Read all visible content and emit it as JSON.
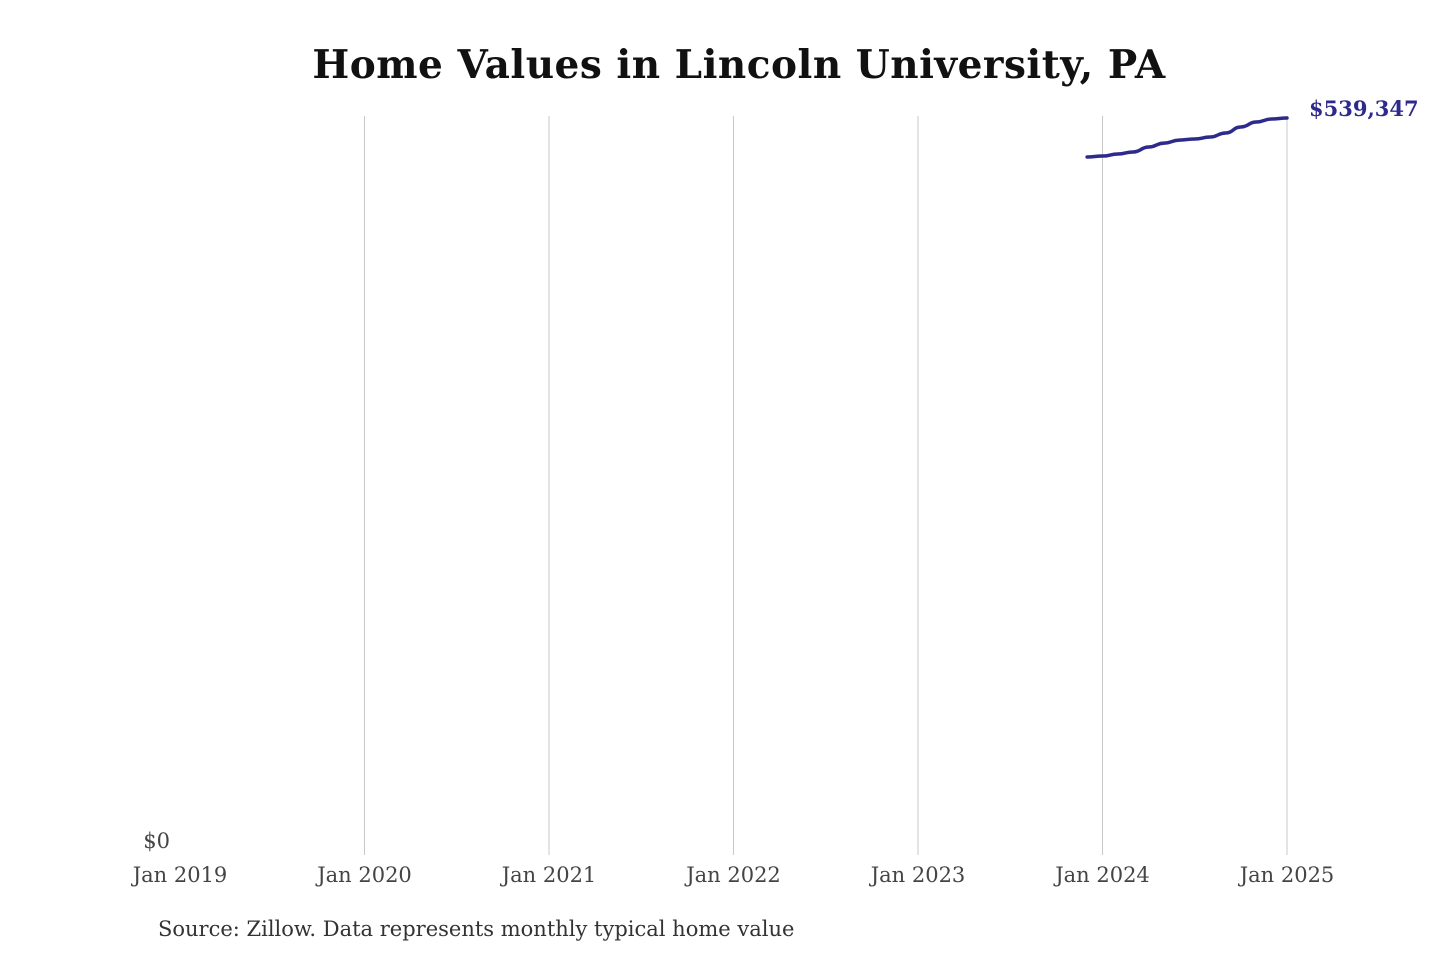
{
  "chart_data": {
    "type": "line",
    "title": "Home Values in Lincoln University, PA",
    "xlabel": "",
    "ylabel": "",
    "x_ticks": [
      "Jan 2019",
      "Jan 2020",
      "Jan 2021",
      "Jan 2022",
      "Jan 2023",
      "Jan 2024",
      "Jan 2025"
    ],
    "y_ticks": [
      "$0"
    ],
    "ylim": [
      0,
      539347
    ],
    "xlim": [
      "2019-01",
      "2025-01"
    ],
    "grid": "vertical",
    "series": [
      {
        "name": "Typical home value",
        "color": "#2e2a8c",
        "x": [
          "2023-12",
          "2024-01",
          "2024-02",
          "2024-03",
          "2024-04",
          "2024-05",
          "2024-06",
          "2024-07",
          "2024-08",
          "2024-09",
          "2024-10",
          "2024-11",
          "2024-12",
          "2025-01"
        ],
        "values": [
          510800,
          511500,
          513000,
          514500,
          518100,
          521000,
          523200,
          524000,
          525400,
          528400,
          532800,
          536400,
          538600,
          539347
        ]
      }
    ],
    "end_label": "$539,347",
    "source": "Source: Zillow. Data represents monthly typical home value"
  }
}
